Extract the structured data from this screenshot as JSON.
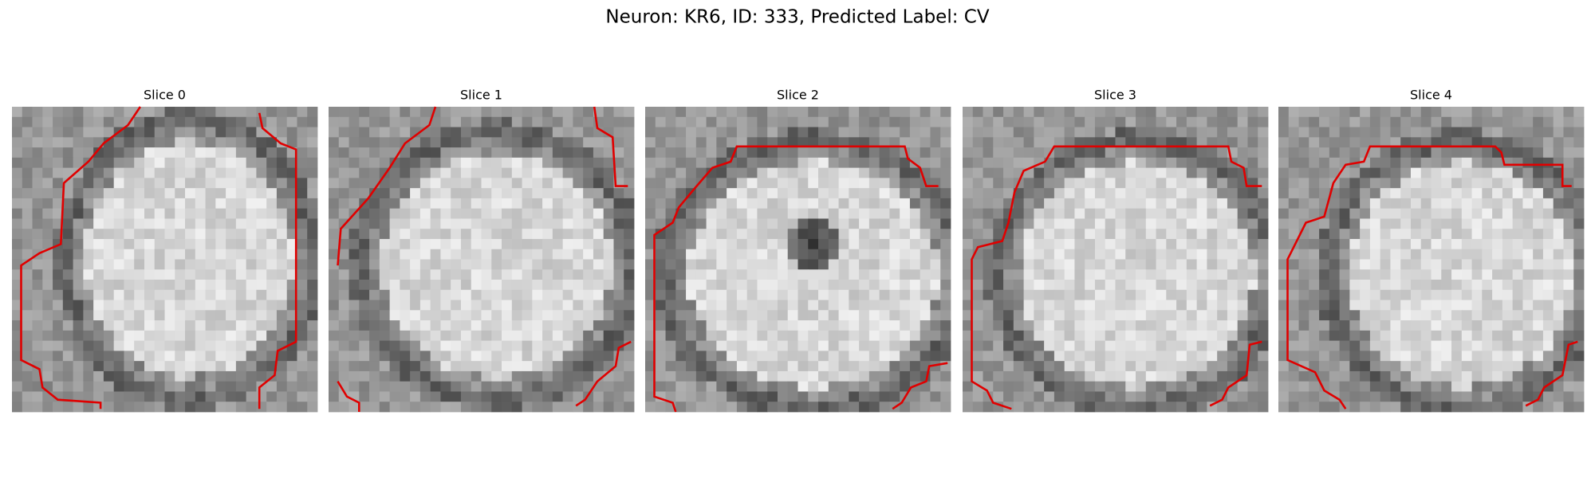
{
  "title": "Neuron: KR6, ID: 333, Predicted Label: CV",
  "panels": [
    {
      "title": "Slice 0"
    },
    {
      "title": "Slice 1"
    },
    {
      "title": "Slice 2"
    },
    {
      "title": "Slice 3"
    },
    {
      "title": "Slice 4"
    }
  ]
}
